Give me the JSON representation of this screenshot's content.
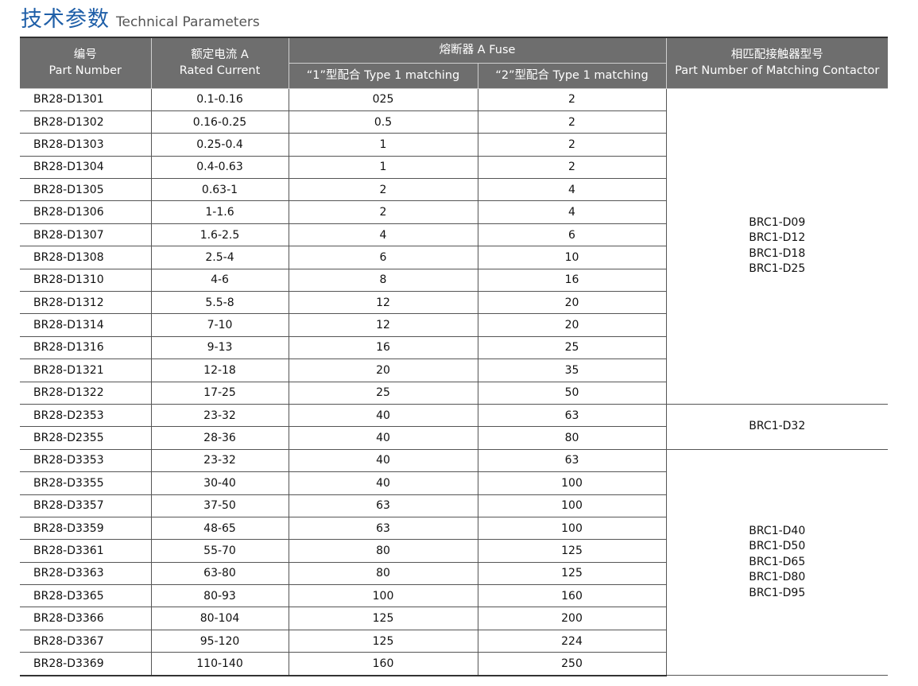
{
  "title": {
    "cn": "技术参数",
    "en": "Technical Parameters"
  },
  "header": {
    "part_number": {
      "cn": "编号",
      "en": "Part Number"
    },
    "rated_current": {
      "cn": "额定电流 A",
      "en": "Rated Current"
    },
    "fuse": "熔断器 A Fuse",
    "type1": "“1”型配合 Type 1 matching",
    "type2": "“2”型配合 Type 1 matching",
    "contactor": {
      "cn": "相匹配接触器型号",
      "en": "Part Number of Matching Contactor"
    }
  },
  "rows": [
    [
      "BR28-D1301",
      "0.1-0.16",
      "025",
      "2"
    ],
    [
      "BR28-D1302",
      "0.16-0.25",
      "0.5",
      "2"
    ],
    [
      "BR28-D1303",
      "0.25-0.4",
      "1",
      "2"
    ],
    [
      "BR28-D1304",
      "0.4-0.63",
      "1",
      "2"
    ],
    [
      "BR28-D1305",
      "0.63-1",
      "2",
      "4"
    ],
    [
      "BR28-D1306",
      "1-1.6",
      "2",
      "4"
    ],
    [
      "BR28-D1307",
      "1.6-2.5",
      "4",
      "6"
    ],
    [
      "BR28-D1308",
      "2.5-4",
      "6",
      "10"
    ],
    [
      "BR28-D1310",
      "4-6",
      "8",
      "16"
    ],
    [
      "BR28-D1312",
      "5.5-8",
      "12",
      "20"
    ],
    [
      "BR28-D1314",
      "7-10",
      "12",
      "20"
    ],
    [
      "BR28-D1316",
      "9-13",
      "16",
      "25"
    ],
    [
      "BR28-D1321",
      "12-18",
      "20",
      "35"
    ],
    [
      "BR28-D1322",
      "17-25",
      "25",
      "50"
    ],
    [
      "BR28-D2353",
      "23-32",
      "40",
      "63"
    ],
    [
      "BR28-D2355",
      "28-36",
      "40",
      "80"
    ],
    [
      "BR28-D3353",
      "23-32",
      "40",
      "63"
    ],
    [
      "BR28-D3355",
      "30-40",
      "40",
      "100"
    ],
    [
      "BR28-D3357",
      "37-50",
      "63",
      "100"
    ],
    [
      "BR28-D3359",
      "48-65",
      "63",
      "100"
    ],
    [
      "BR28-D3361",
      "55-70",
      "80",
      "125"
    ],
    [
      "BR28-D3363",
      "63-80",
      "80",
      "125"
    ],
    [
      "BR28-D3365",
      "80-93",
      "100",
      "160"
    ],
    [
      "BR28-D3366",
      "80-104",
      "125",
      "200"
    ],
    [
      "BR28-D3367",
      "95-120",
      "125",
      "224"
    ],
    [
      "BR28-D3369",
      "110-140",
      "160",
      "250"
    ]
  ],
  "contactor_groups": [
    {
      "span": 14,
      "items": [
        "BRC1-D09",
        "BRC1-D12",
        "BRC1-D18",
        "BRC1-D25"
      ]
    },
    {
      "span": 2,
      "items": [
        "BRC1-D32"
      ]
    },
    {
      "span": 10,
      "items": [
        "BRC1-D40",
        "BRC1-D50",
        "BRC1-D65",
        "BRC1-D80",
        "BRC1-D95"
      ]
    }
  ]
}
